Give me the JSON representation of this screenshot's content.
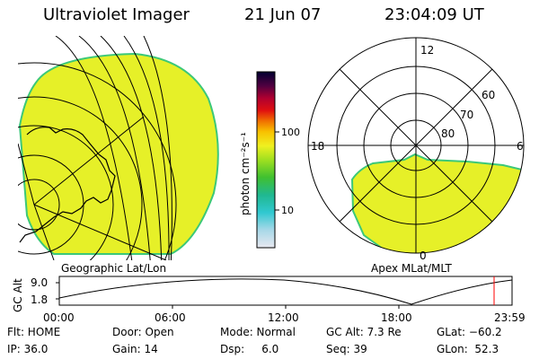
{
  "header": {
    "instrument": "Ultraviolet Imager",
    "date": "21 Jun 07",
    "time": "23:04:09 UT"
  },
  "colorbar": {
    "unit_label": "photon cm⁻²s⁻¹",
    "ticks": [
      "100",
      "10"
    ]
  },
  "left_map": {
    "caption": "Geographic Lat/Lon"
  },
  "right_map": {
    "caption": "Apex MLat/MLT",
    "mlt_labels": {
      "top": "12",
      "left": "18",
      "right": "6",
      "bottom": "0"
    },
    "mlat_labels": [
      "60",
      "70",
      "80"
    ]
  },
  "altitude_plot": {
    "ylabel": "GC Alt",
    "yticks": [
      "9.0",
      "1.8"
    ],
    "xticks": [
      "00:00",
      "06:00",
      "12:00",
      "18:00",
      "23:59"
    ],
    "current_time_color": "#ff0000"
  },
  "status": {
    "flt": "Flt: HOME",
    "ip": "IP: 36.0",
    "door": "Door: Open",
    "gain": "Gain: 14",
    "mode": "Mode: Normal",
    "dsp": "Dsp:     6.0",
    "gc_alt": "GC Alt: 7.3 Re",
    "seq": "Seq: 39",
    "glat": "GLat: −60.2",
    "glon": "GLon:  52.3"
  },
  "colors": {
    "aurora_fill": "#e6f028",
    "aurora_edge": "#3cc878",
    "line": "#000000"
  }
}
